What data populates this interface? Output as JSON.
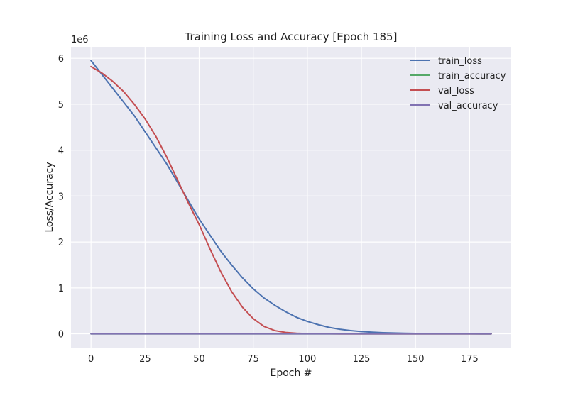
{
  "chart_data": {
    "type": "line",
    "title": "Training Loss and Accuracy [Epoch 185]",
    "xlabel": "Epoch #",
    "ylabel": "Loss/Accuracy",
    "y_offset_label": "1e6",
    "xlim": [
      -9.25,
      194.25
    ],
    "ylim": [
      -0.3,
      6.25
    ],
    "xticks": [
      0,
      25,
      50,
      75,
      100,
      125,
      150,
      175
    ],
    "yticks": [
      0,
      1,
      2,
      3,
      4,
      5,
      6
    ],
    "grid": true,
    "legend_position": "top-right",
    "x": [
      0,
      5,
      10,
      15,
      20,
      25,
      30,
      35,
      40,
      45,
      50,
      55,
      60,
      65,
      70,
      75,
      80,
      85,
      90,
      95,
      100,
      105,
      110,
      115,
      120,
      125,
      130,
      135,
      140,
      145,
      150,
      155,
      160,
      165,
      170,
      175,
      180,
      185
    ],
    "series": [
      {
        "name": "train_loss",
        "color": "#4c72b0",
        "values": [
          5.95,
          5.65,
          5.35,
          5.05,
          4.75,
          4.4,
          4.05,
          3.7,
          3.3,
          2.9,
          2.5,
          2.15,
          1.8,
          1.5,
          1.22,
          0.98,
          0.78,
          0.62,
          0.48,
          0.36,
          0.27,
          0.2,
          0.14,
          0.1,
          0.07,
          0.05,
          0.035,
          0.025,
          0.018,
          0.012,
          0.008,
          0.005,
          0.003,
          0.002,
          0.001,
          0.001,
          0.0,
          0.0
        ]
      },
      {
        "name": "train_accuracy",
        "color": "#55a868",
        "values": [
          0,
          0,
          0,
          0,
          0,
          0,
          0,
          0,
          0,
          0,
          0,
          0,
          0,
          0,
          0,
          0,
          0,
          0,
          0,
          0,
          0,
          0,
          0,
          0,
          0,
          0,
          0,
          0,
          0,
          0,
          0,
          0,
          0,
          0,
          0,
          0,
          0,
          0
        ]
      },
      {
        "name": "val_loss",
        "color": "#c44e52",
        "values": [
          5.82,
          5.68,
          5.5,
          5.28,
          5.0,
          4.68,
          4.3,
          3.85,
          3.35,
          2.85,
          2.38,
          1.85,
          1.35,
          0.92,
          0.58,
          0.33,
          0.16,
          0.07,
          0.03,
          0.012,
          0.005,
          0.002,
          0.001,
          0.0,
          0.0,
          0.0,
          0.0,
          0.0,
          0.0,
          0.0,
          0.0,
          0.0,
          0.0,
          0.0,
          0.0,
          0.0,
          0.0,
          0.0
        ]
      },
      {
        "name": "val_accuracy",
        "color": "#8172b2",
        "values": [
          0,
          0,
          0,
          0,
          0,
          0,
          0,
          0,
          0,
          0,
          0,
          0,
          0,
          0,
          0,
          0,
          0,
          0,
          0,
          0,
          0,
          0,
          0,
          0,
          0,
          0,
          0,
          0,
          0,
          0,
          0,
          0,
          0,
          0,
          0,
          0,
          0,
          0
        ]
      }
    ]
  }
}
